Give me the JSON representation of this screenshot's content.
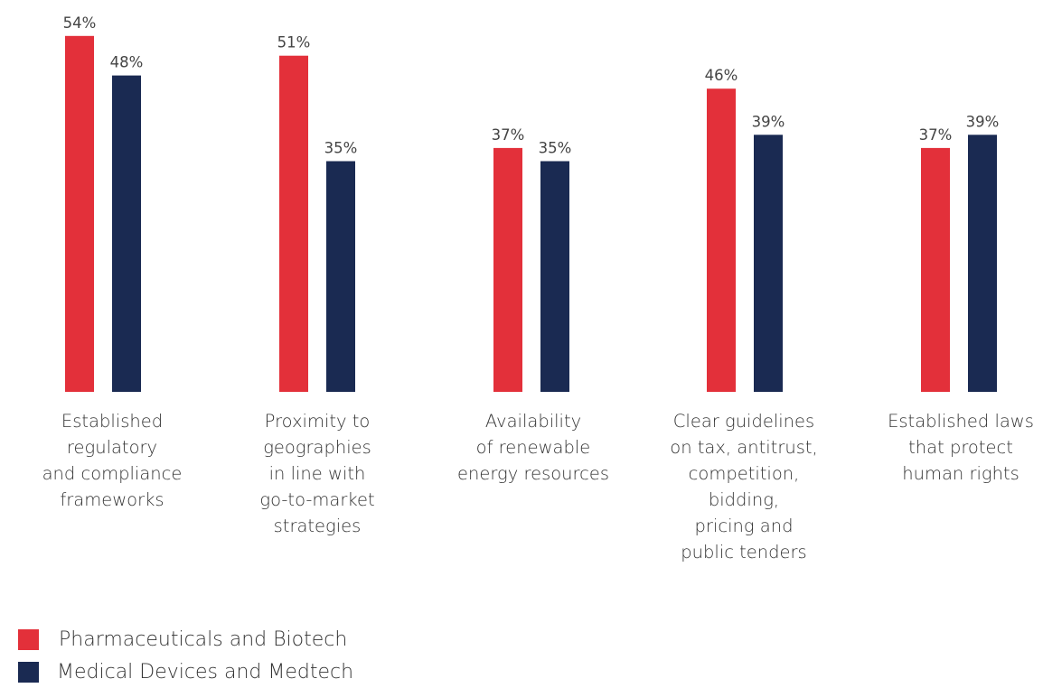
{
  "chart_data": {
    "type": "bar",
    "categories": [
      "Established\nregulatory\nand compliance\nframeworks",
      "Proximity to\ngeographies\nin line with\ngo-to-market\nstrategies",
      "Availability\nof renewable\nenergy resources",
      "Clear guidelines\non tax, antitrust,\ncompetition,\nbidding,\npricing and\npublic tenders",
      "Established laws\nthat protect\nhuman rights"
    ],
    "series": [
      {
        "name": "Pharmaceuticals and Biotech",
        "color": "#e3303a",
        "values": [
          54,
          51,
          37,
          46,
          37
        ]
      },
      {
        "name": "Medical Devices and Medtech",
        "color": "#1a2a52",
        "values": [
          48,
          35,
          35,
          39,
          39
        ]
      }
    ],
    "value_suffix": "%",
    "ylim": [
      0,
      60
    ],
    "grid": false,
    "legend_position": "bottom-left"
  }
}
